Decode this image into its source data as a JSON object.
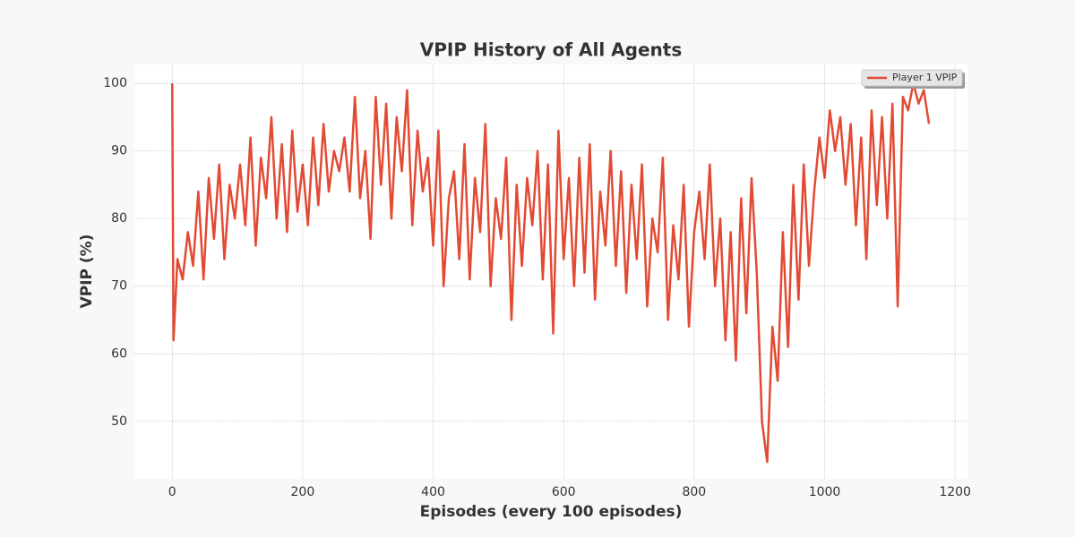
{
  "chart_data": {
    "type": "line",
    "title": "VPIP History of All Agents",
    "x_label": "Episodes (every 100 episodes)",
    "y_label": "VPIP (%)",
    "x": [
      0,
      2,
      8,
      16,
      24,
      32,
      40,
      48,
      56,
      64,
      72,
      80,
      88,
      96,
      104,
      112,
      120,
      128,
      136,
      144,
      152,
      160,
      168,
      176,
      184,
      192,
      200,
      208,
      216,
      224,
      232,
      240,
      248,
      256,
      264,
      272,
      280,
      288,
      296,
      304,
      312,
      320,
      328,
      336,
      344,
      352,
      360,
      368,
      376,
      384,
      392,
      400,
      408,
      416,
      424,
      432,
      440,
      448,
      456,
      464,
      472,
      480,
      488,
      496,
      504,
      512,
      520,
      528,
      536,
      544,
      552,
      560,
      568,
      576,
      584,
      592,
      600,
      608,
      616,
      624,
      632,
      640,
      648,
      656,
      664,
      672,
      680,
      688,
      696,
      704,
      712,
      720,
      728,
      736,
      744,
      752,
      760,
      768,
      776,
      784,
      792,
      800,
      808,
      816,
      824,
      832,
      840,
      848,
      856,
      864,
      872,
      880,
      888,
      896,
      904,
      912,
      920,
      928,
      936,
      944,
      952,
      960,
      968,
      976,
      984,
      992,
      1000,
      1008,
      1016,
      1024,
      1032,
      1040,
      1048,
      1056,
      1064,
      1072,
      1080,
      1088,
      1096,
      1104,
      1112,
      1120,
      1128,
      1136,
      1144,
      1152,
      1160
    ],
    "series": [
      {
        "name": "Player 1 VPIP",
        "color": "#e24a33",
        "values": [
          100,
          62,
          74,
          71,
          78,
          73,
          84,
          71,
          86,
          77,
          88,
          74,
          85,
          80,
          88,
          79,
          92,
          76,
          89,
          83,
          95,
          80,
          91,
          78,
          93,
          81,
          88,
          79,
          92,
          82,
          94,
          84,
          90,
          87,
          92,
          84,
          98,
          83,
          90,
          77,
          98,
          85,
          97,
          80,
          95,
          87,
          99,
          79,
          93,
          84,
          89,
          76,
          93,
          70,
          83,
          87,
          74,
          91,
          71,
          86,
          78,
          94,
          70,
          83,
          77,
          89,
          65,
          85,
          73,
          86,
          79,
          90,
          71,
          88,
          63,
          93,
          74,
          86,
          70,
          89,
          72,
          91,
          68,
          84,
          76,
          90,
          73,
          87,
          69,
          85,
          74,
          88,
          67,
          80,
          75,
          89,
          65,
          79,
          71,
          85,
          64,
          78,
          84,
          74,
          88,
          70,
          80,
          62,
          78,
          59,
          83,
          66,
          86,
          72,
          50,
          44,
          64,
          56,
          78,
          61,
          85,
          68,
          88,
          73,
          84,
          92,
          86,
          96,
          90,
          95,
          85,
          94,
          79,
          92,
          74,
          96,
          82,
          95,
          80,
          97,
          67,
          98,
          96,
          100,
          97,
          99,
          94
        ]
      }
    ],
    "xlim": [
      -58,
      1219
    ],
    "ylim": [
      41.5,
      102.8
    ],
    "xticks": [
      0,
      200,
      400,
      600,
      800,
      1000,
      1200
    ],
    "yticks": [
      50,
      60,
      70,
      80,
      90,
      100
    ],
    "grid": true,
    "legend": "upper right"
  }
}
